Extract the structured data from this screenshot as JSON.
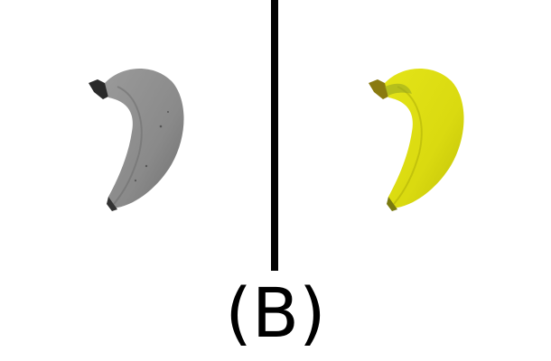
{
  "caption": "(B)",
  "panels": [
    {
      "name": "grayscale-banana",
      "body_color": "#8f8f8f",
      "shade_color": "#6f6f6f",
      "stem_color": "#2a2a2a"
    },
    {
      "name": "color-banana",
      "body_color": "#dede10",
      "shade_color": "#c2c20a",
      "stem_color": "#5a5a10"
    }
  ],
  "divider_color": "#000000"
}
